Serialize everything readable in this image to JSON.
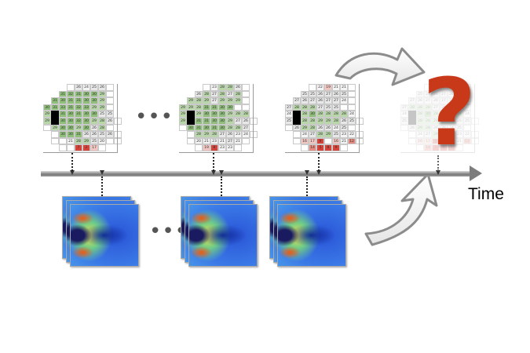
{
  "timeline": {
    "label": "Time",
    "ellipsis": "•••"
  },
  "prediction": {
    "symbol": "?",
    "color": "#c8391a"
  },
  "visual_fields": [
    {
      "id": "vf1",
      "rows": [
        [
          "",
          "26",
          "24",
          "25",
          "26",
          ""
        ],
        [
          "31",
          "32",
          "31",
          "30",
          "30",
          "29",
          ""
        ],
        [
          "31",
          "30",
          "31",
          "31",
          "30",
          "30",
          "29",
          ""
        ],
        [
          "30",
          "31",
          "33",
          "31",
          "32",
          "33",
          "29",
          "29",
          ""
        ],
        [
          "29",
          "",
          "31",
          "30",
          "31",
          "30",
          "30",
          "25",
          "25"
        ],
        [
          "29",
          "",
          "30",
          "30",
          "32",
          "30",
          "29",
          "28",
          "26",
          ""
        ],
        [
          "",
          "29",
          "30",
          "30",
          "29",
          "30",
          "26",
          "28",
          ""
        ],
        [
          "",
          "30",
          "30",
          "31",
          "26",
          "26",
          "25",
          "26",
          ""
        ],
        [
          "",
          "",
          "21",
          "28",
          "29",
          "25",
          "20",
          "",
          ""
        ],
        [
          "",
          "",
          "7",
          "2",
          "17",
          ""
        ]
      ]
    },
    {
      "id": "vf2",
      "rows": [
        [
          "",
          "23",
          "28",
          "28",
          "26",
          ""
        ],
        [
          "26",
          "28",
          "27",
          "28",
          "27",
          "28",
          ""
        ],
        [
          "29",
          "28",
          "29",
          "27",
          "29",
          "29",
          "29",
          ""
        ],
        [
          "29",
          "29",
          "28",
          "31",
          "31",
          "30",
          "30",
          "",
          ""
        ],
        [
          "29",
          "",
          "29",
          "30",
          "30",
          "30",
          "29",
          "28",
          "28"
        ],
        [
          "29",
          "",
          "31",
          "31",
          "30",
          "30",
          "29",
          "27",
          "26",
          ""
        ],
        [
          "",
          "30",
          "31",
          "30",
          "31",
          "30",
          "28",
          "28",
          "27"
        ],
        [
          "",
          "28",
          "29",
          "28",
          "27",
          "26",
          "23",
          "24",
          ""
        ],
        [
          "",
          "20",
          "21",
          "23",
          "21",
          "27",
          "21",
          ""
        ],
        [
          "",
          "19",
          "8",
          "23",
          "23",
          ""
        ]
      ]
    },
    {
      "id": "vf3",
      "rows": [
        [
          "",
          "22",
          "19",
          "21",
          "21",
          ""
        ],
        [
          "25",
          "25",
          "26",
          "27",
          "26",
          "25",
          ""
        ],
        [
          "27",
          "26",
          "27",
          "26",
          "27",
          "27",
          "24",
          ""
        ],
        [
          "27",
          "28",
          "28",
          "28",
          "27",
          "25",
          "25",
          "",
          ""
        ],
        [
          "24",
          "",
          "28",
          "30",
          "28",
          "28",
          "28",
          "28",
          "24"
        ],
        [
          "25",
          "",
          "28",
          "28",
          "29",
          "29",
          "28",
          "26",
          "25",
          ""
        ],
        [
          "",
          "26",
          "29",
          "28",
          "26",
          "26",
          "24",
          "25",
          ""
        ],
        [
          "",
          "24",
          "27",
          "28",
          "29",
          "25",
          "23",
          "22",
          ""
        ],
        [
          "",
          "16",
          "17",
          "9",
          "",
          "16",
          "21",
          "12",
          ""
        ],
        [
          "",
          "14",
          "5",
          "8",
          "9",
          ""
        ]
      ]
    }
  ],
  "colors": {
    "axis": "#8a8a8a",
    "prediction_arrow": "#9a9a9a",
    "normal_cell": "#8fbf7a",
    "defect_cell": "#d3433a",
    "blind_spot": "#000000"
  }
}
